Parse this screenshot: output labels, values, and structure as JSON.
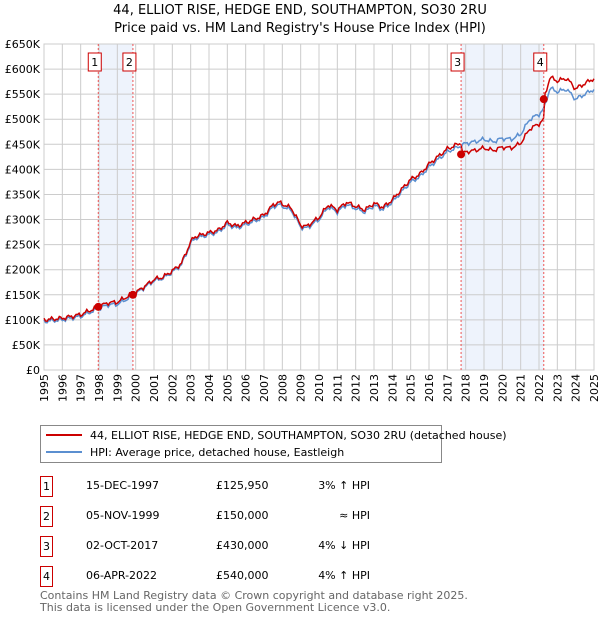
{
  "chart_data": {
    "type": "line",
    "title": "44, ELLIOT RISE, HEDGE END, SOUTHAMPTON, SO30 2RU",
    "subtitle": "Price paid vs. HM Land Registry's House Price Index (HPI)",
    "xlim": [
      1995,
      2025
    ],
    "ylim": [
      0,
      650000
    ],
    "x_ticks": [
      "1995",
      "1996",
      "1997",
      "1998",
      "1999",
      "2000",
      "2001",
      "2002",
      "2003",
      "2004",
      "2005",
      "2006",
      "2007",
      "2008",
      "2009",
      "2010",
      "2011",
      "2012",
      "2013",
      "2014",
      "2015",
      "2016",
      "2017",
      "2018",
      "2019",
      "2020",
      "2021",
      "2022",
      "2023",
      "2024",
      "2025"
    ],
    "y_ticks": [
      "£0",
      "£50K",
      "£100K",
      "£150K",
      "£200K",
      "£250K",
      "£300K",
      "£350K",
      "£400K",
      "£450K",
      "£500K",
      "£550K",
      "£600K",
      "£650K"
    ],
    "grid": true,
    "hpi_series": {
      "name": "HPI: Average price, detached house, Eastleigh",
      "color": "#5b8fd0",
      "x": [
        1995,
        1996,
        1997,
        1997.96,
        1998.5,
        1999,
        1999.85,
        2000.5,
        2001,
        2001.5,
        2002,
        2002.5,
        2003,
        2003.2,
        2004,
        2004.5,
        2005,
        2005.5,
        2006,
        2006.5,
        2007,
        2007.5,
        2007.8,
        2008.5,
        2009,
        2009.3,
        2010,
        2010.5,
        2011,
        2011.5,
        2012,
        2012.5,
        2013,
        2013.5,
        2014,
        2014.5,
        2015,
        2015.5,
        2016,
        2016.5,
        2017,
        2017.75,
        2018,
        2018.5,
        2019,
        2019.5,
        2020,
        2020.5,
        2021,
        2021.5,
        2022,
        2022.26,
        2022.6,
        2023,
        2023.5,
        2024,
        2024.5,
        2025
      ],
      "y": [
        97,
        100,
        107,
        122,
        130,
        131,
        148,
        165,
        178,
        183,
        195,
        210,
        252,
        262,
        270,
        275,
        290,
        283,
        290,
        297,
        305,
        325,
        330,
        318,
        285,
        282,
        300,
        325,
        315,
        330,
        322,
        315,
        328,
        320,
        335,
        355,
        375,
        385,
        405,
        420,
        435,
        447,
        452,
        455,
        460,
        455,
        462,
        460,
        470,
        500,
        510,
        520,
        562,
        555,
        560,
        540,
        550,
        560
      ]
    },
    "property_series": {
      "name": "44, ELLIOT RISE, HEDGE END, SOUTHAMPTON, SO30 2RU (detached house)",
      "color": "#cc0000"
    },
    "sales": [
      {
        "n": "1",
        "x": 1997.96,
        "date": "15-DEC-1997",
        "price": "£125,950",
        "value": 125950,
        "hpi": "3% ↑ HPI"
      },
      {
        "n": "2",
        "x": 1999.85,
        "date": "05-NOV-1999",
        "price": "£150,000",
        "value": 150000,
        "hpi": "≈ HPI"
      },
      {
        "n": "3",
        "x": 2017.75,
        "date": "02-OCT-2017",
        "price": "£430,000",
        "value": 430000,
        "hpi": "4% ↓ HPI"
      },
      {
        "n": "4",
        "x": 2022.26,
        "date": "06-APR-2022",
        "price": "£540,000",
        "value": 540000,
        "hpi": "4% ↑ HPI"
      }
    ]
  },
  "footer": [
    "Contains HM Land Registry data © Crown copyright and database right 2025.",
    "This data is licensed under the Open Government Licence v3.0."
  ]
}
